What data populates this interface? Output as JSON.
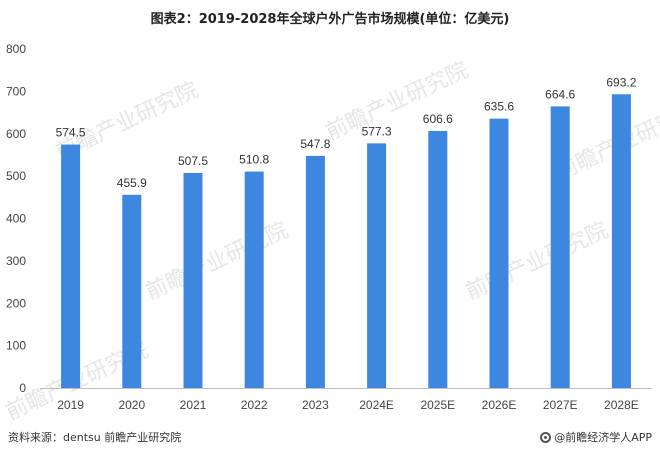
{
  "title": "图表2：2019-2028年全球户外广告市场规模(单位：亿美元)",
  "source": "资料来源：dentsu 前瞻产业研究院",
  "brand": "@前瞻经济学人APP",
  "watermark": "前瞻产业研究院",
  "colors": {
    "bar": "#3d87e0",
    "axis": "#bfbfbf"
  },
  "chart_data": {
    "type": "bar",
    "categories": [
      "2019",
      "2020",
      "2021",
      "2022",
      "2023",
      "2024E",
      "2025E",
      "2026E",
      "2027E",
      "2028E"
    ],
    "values": [
      574.5,
      455.9,
      507.5,
      510.8,
      547.8,
      577.3,
      606.6,
      635.6,
      664.6,
      693.2
    ],
    "ylim": [
      0,
      800
    ],
    "yticks": [
      0,
      100,
      200,
      300,
      400,
      500,
      600,
      700,
      800
    ],
    "grid": false
  }
}
